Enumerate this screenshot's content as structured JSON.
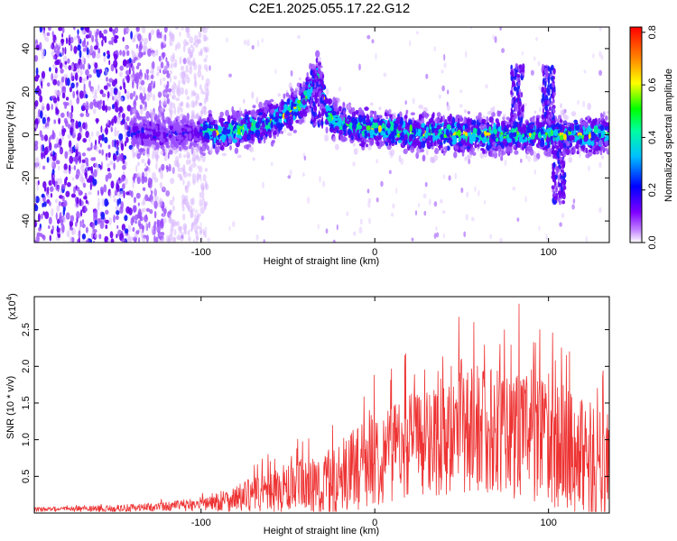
{
  "title": "C2E1.2025.055.17.22.G12",
  "chart_data": [
    {
      "type": "heatmap",
      "xlabel": "Height of straight line (km)",
      "ylabel": "Frequency (Hz)",
      "xlim": [
        -196,
        135
      ],
      "ylim": [
        -50,
        50
      ],
      "xticks": [
        -100,
        0,
        100
      ],
      "xtick_labels": [
        "-100",
        "0",
        "100"
      ],
      "yticks": [
        -40,
        -20,
        0,
        20,
        40
      ],
      "ytick_labels": [
        "-40",
        "-20",
        "0",
        "20",
        "40"
      ],
      "grid": false,
      "colorbar": {
        "label": "Normalized spectral amplitude",
        "range": [
          0,
          0.82
        ],
        "ticks": [
          0.0,
          0.2,
          0.4,
          0.6,
          0.8
        ],
        "tick_labels": [
          "0.0",
          "0.2",
          "0.4",
          "0.6",
          "0.8"
        ],
        "colormap": [
          "#ffffff",
          "#7f00ff",
          "#0000ff",
          "#00ffff",
          "#00ff00",
          "#ffff00",
          "#ff8000",
          "#ff0000"
        ]
      },
      "features": {
        "noise_region_x": [
          -196,
          -118
        ],
        "main_band_x": [
          -140,
          135
        ],
        "ridge_curve": [
          [
            -90,
            1
          ],
          [
            -75,
            3
          ],
          [
            -60,
            6
          ],
          [
            -50,
            10
          ],
          [
            -42,
            15
          ],
          [
            -36,
            22
          ],
          [
            -33,
            27
          ],
          [
            -30,
            20
          ],
          [
            -28,
            10
          ],
          [
            -20,
            5
          ],
          [
            0,
            3
          ],
          [
            20,
            1
          ],
          [
            50,
            0
          ],
          [
            100,
            0
          ],
          [
            135,
            0
          ]
        ],
        "spike_x": [
          -33,
          82,
          100,
          106
        ]
      }
    },
    {
      "type": "line",
      "xlabel": "Height of straight line (km)",
      "ylabel": "SNR (10 * v/v)",
      "y_multiplier": "(x10^4)",
      "xlim": [
        -196,
        135
      ],
      "ylim": [
        0,
        2.95
      ],
      "xticks": [
        -100,
        0,
        100
      ],
      "xtick_labels": [
        "-100",
        "0",
        "100"
      ],
      "yticks": [
        0.5,
        1.0,
        1.5,
        2.0,
        2.5
      ],
      "ytick_labels": [
        "0.5",
        "1.0",
        "1.5",
        "2.0",
        "2.5"
      ],
      "grid": false,
      "series_color": "#ee3333",
      "envelope": [
        [
          -196,
          0.05
        ],
        [
          -150,
          0.06
        ],
        [
          -120,
          0.09
        ],
        [
          -100,
          0.12
        ],
        [
          -80,
          0.2
        ],
        [
          -60,
          0.3
        ],
        [
          -40,
          0.35
        ],
        [
          -25,
          0.4
        ],
        [
          -15,
          0.55
        ],
        [
          0,
          0.75
        ],
        [
          20,
          0.95
        ],
        [
          40,
          1.05
        ],
        [
          60,
          1.15
        ],
        [
          80,
          1.15
        ],
        [
          100,
          1.0
        ],
        [
          120,
          0.75
        ],
        [
          135,
          0.55
        ]
      ],
      "amplitude": [
        [
          -196,
          0.03
        ],
        [
          -120,
          0.06
        ],
        [
          -100,
          0.1
        ],
        [
          -80,
          0.18
        ],
        [
          -60,
          0.3
        ],
        [
          -40,
          0.4
        ],
        [
          -20,
          0.5
        ],
        [
          0,
          0.65
        ],
        [
          40,
          0.8
        ],
        [
          80,
          0.95
        ],
        [
          100,
          0.9
        ],
        [
          135,
          0.8
        ]
      ],
      "peak_points": [
        [
          -35,
          0.7
        ],
        [
          -3,
          1.4
        ],
        [
          20,
          1.6
        ],
        [
          50,
          2.1
        ],
        [
          57,
          2.6
        ],
        [
          72,
          2.3
        ],
        [
          83,
          2.85
        ],
        [
          95,
          2.5
        ],
        [
          112,
          2.2
        ],
        [
          128,
          1.7
        ]
      ]
    }
  ]
}
